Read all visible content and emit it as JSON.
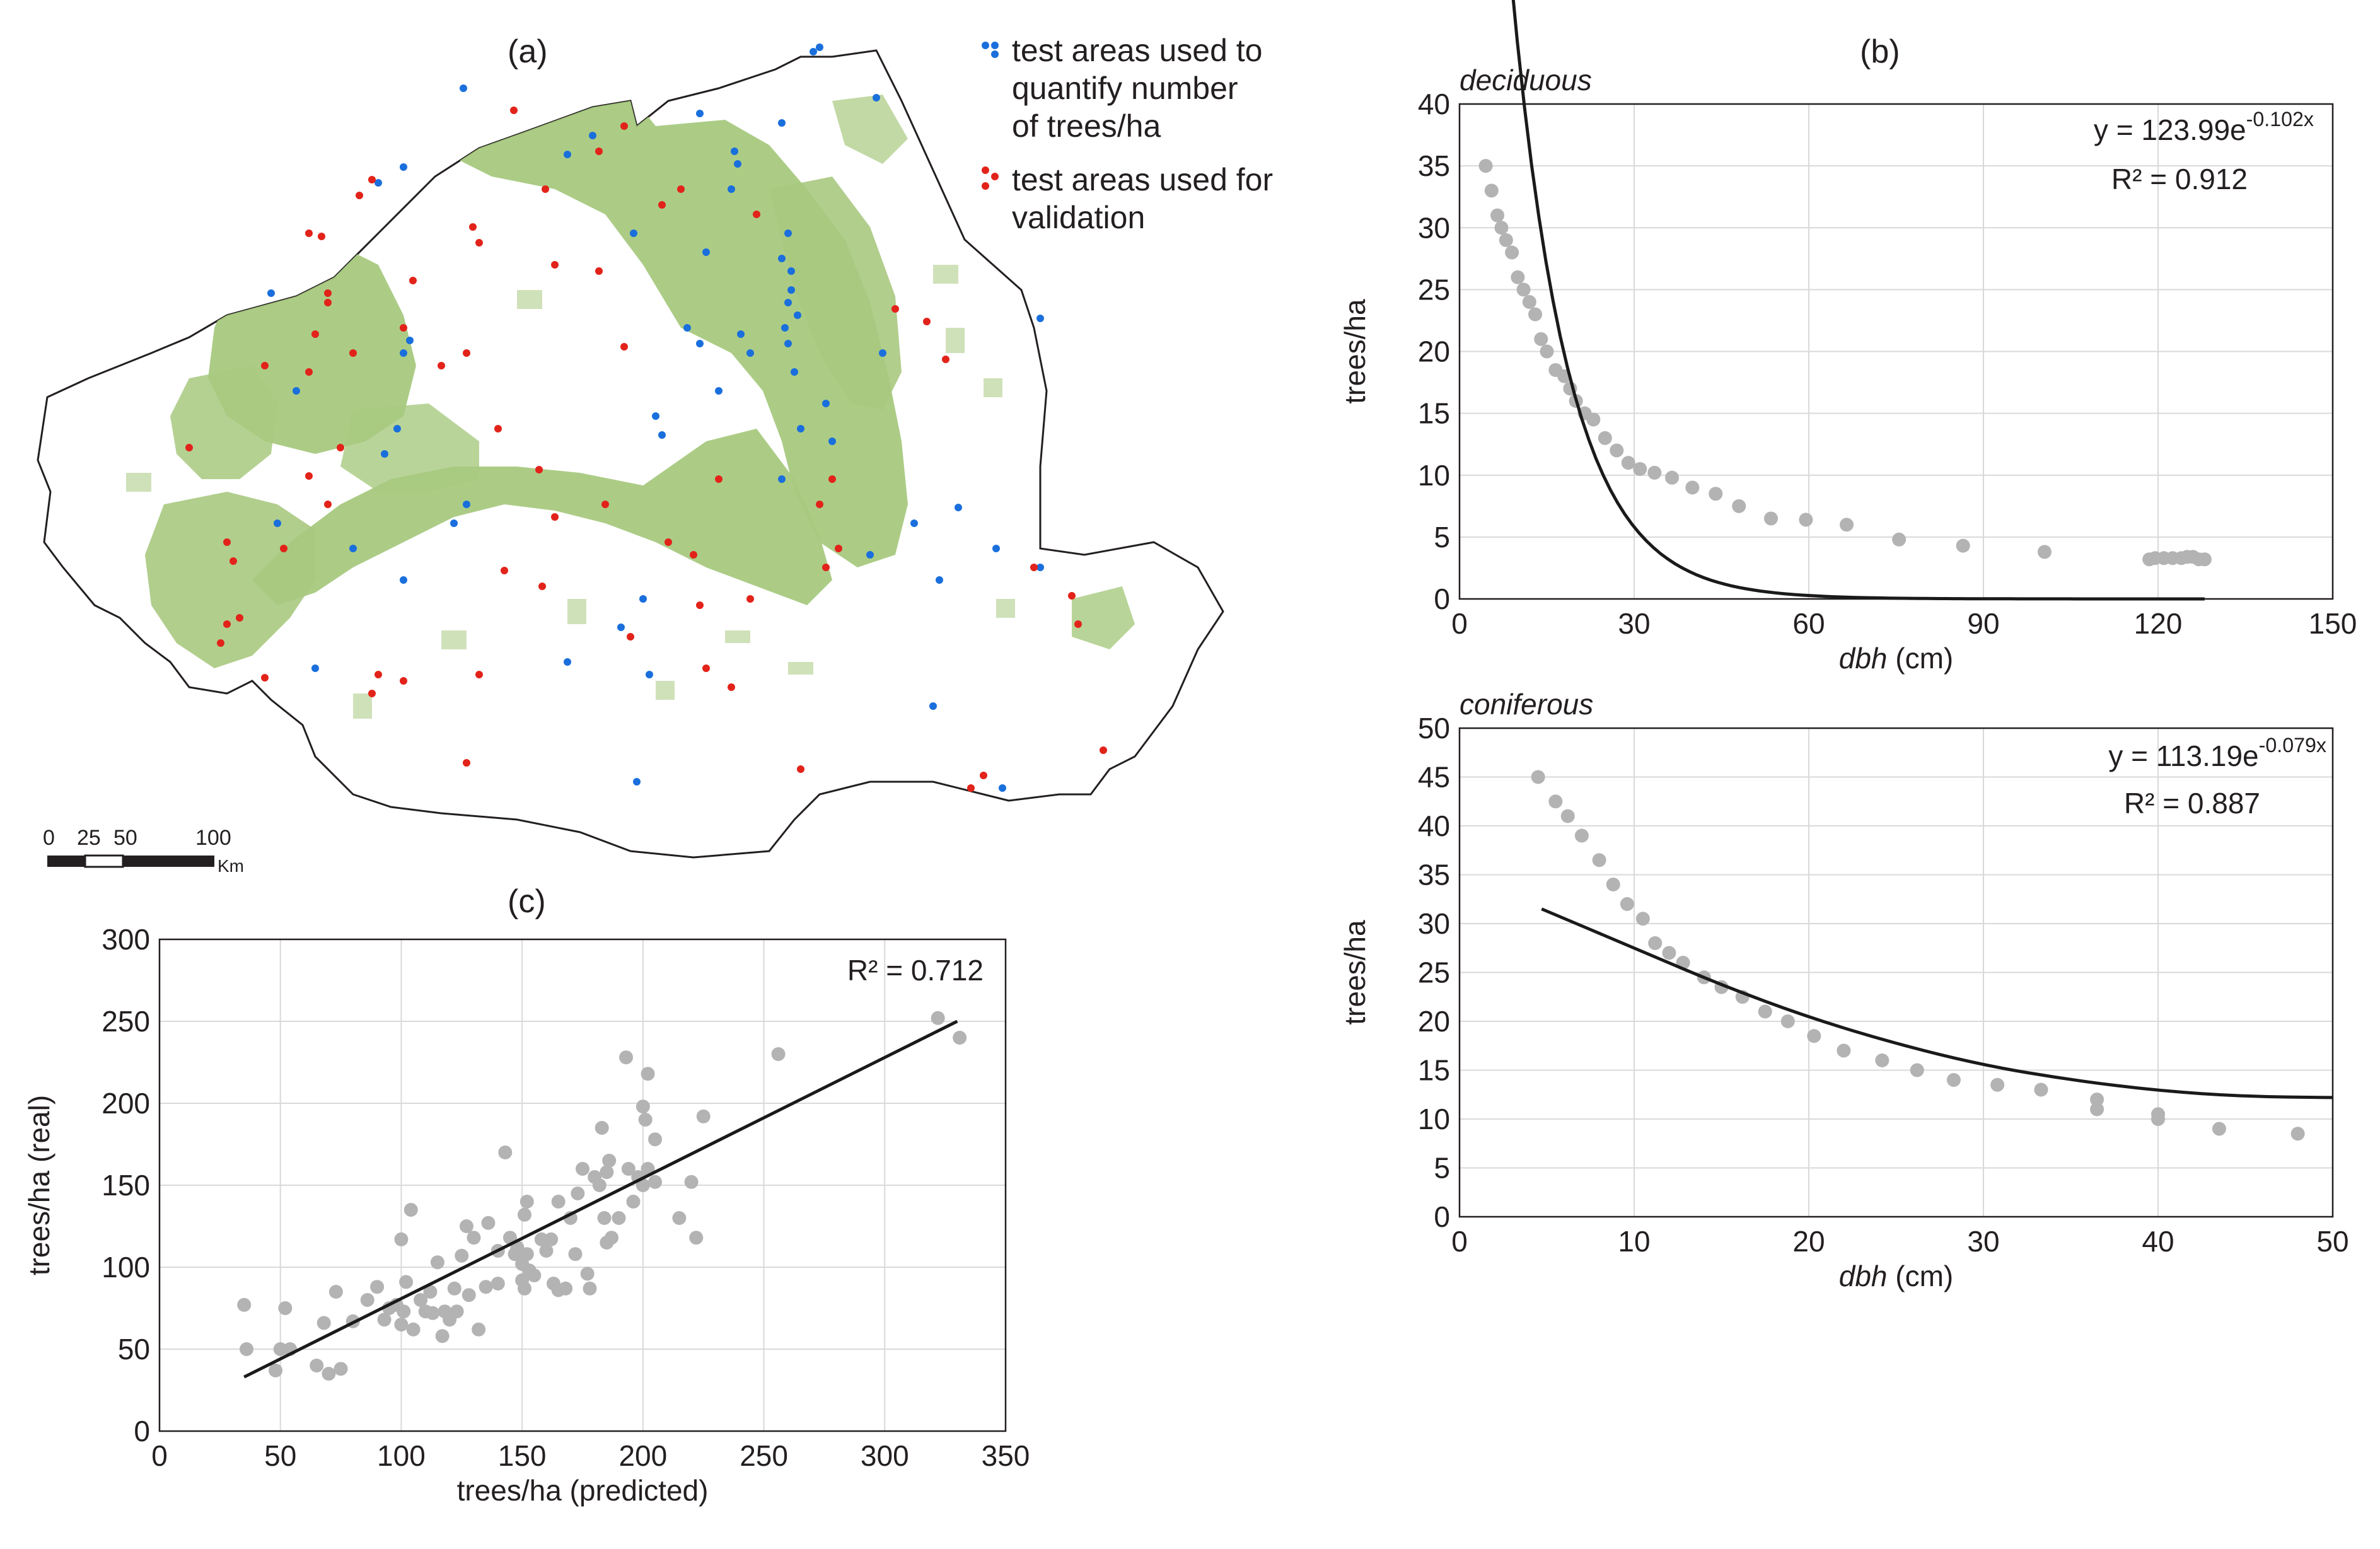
{
  "figure": {
    "panel_a_label": "(a)",
    "panel_b_label": "(b)",
    "panel_c_label": "(c)"
  },
  "map": {
    "legend": {
      "blue_label_lines": [
        "test areas used to",
        "quantify number",
        "of trees/ha"
      ],
      "red_label_lines": [
        "test areas used for",
        "validation"
      ]
    },
    "scale_bar": {
      "ticks": [
        "0",
        "25",
        "50",
        "100"
      ],
      "unit": "Km"
    },
    "colors": {
      "forest": "#a8c97f",
      "blue_points": "#1a6fdc",
      "red_points": "#e2231a",
      "border": "#231f20"
    }
  },
  "chart_data": [
    {
      "id": "deciduous",
      "type": "scatter",
      "title": "deciduous",
      "xlabel": "dbh (cm)",
      "ylabel": "trees/ha",
      "xlim": [
        0,
        150
      ],
      "ylim": [
        0,
        40
      ],
      "xticks": [
        0,
        30,
        60,
        90,
        120,
        150
      ],
      "yticks": [
        0,
        5,
        10,
        15,
        20,
        25,
        30,
        35,
        40
      ],
      "grid": true,
      "equation": "y = 123.99e",
      "equation_exp": "-0.102x",
      "r2_text": "R² = 0.912",
      "fit": {
        "a": 123.99,
        "b": -0.102,
        "x_range": [
          5,
          128
        ]
      },
      "points": [
        [
          4.5,
          35
        ],
        [
          5.5,
          33
        ],
        [
          6.5,
          31
        ],
        [
          7.2,
          30
        ],
        [
          8,
          29
        ],
        [
          9,
          28
        ],
        [
          10,
          26
        ],
        [
          11,
          25
        ],
        [
          12,
          24
        ],
        [
          13,
          23
        ],
        [
          14,
          21
        ],
        [
          15,
          20
        ],
        [
          16.5,
          18.5
        ],
        [
          18,
          18
        ],
        [
          19,
          17
        ],
        [
          20,
          16
        ],
        [
          21.5,
          15
        ],
        [
          23,
          14.5
        ],
        [
          25,
          13
        ],
        [
          27,
          12
        ],
        [
          29,
          11
        ],
        [
          31,
          10.5
        ],
        [
          33.5,
          10.2
        ],
        [
          36.5,
          9.8
        ],
        [
          40,
          9
        ],
        [
          44,
          8.5
        ],
        [
          48,
          7.5
        ],
        [
          53.5,
          6.5
        ],
        [
          59.5,
          6.4
        ],
        [
          66.5,
          6
        ],
        [
          75.5,
          4.8
        ],
        [
          86.5,
          4.3
        ],
        [
          100.5,
          3.8
        ],
        [
          118.5,
          3.2
        ],
        [
          119.5,
          3.3
        ],
        [
          121,
          3.3
        ],
        [
          122.5,
          3.3
        ],
        [
          124,
          3.3
        ],
        [
          125,
          3.4
        ],
        [
          126,
          3.4
        ],
        [
          127,
          3.2
        ],
        [
          128,
          3.2
        ]
      ]
    },
    {
      "id": "coniferous",
      "type": "scatter",
      "title": "coniferous",
      "xlabel": "dbh (cm)",
      "ylabel": "trees/ha",
      "xlim": [
        0,
        50
      ],
      "ylim": [
        0,
        50
      ],
      "xticks": [
        0,
        10,
        20,
        30,
        40,
        50
      ],
      "yticks": [
        0,
        5,
        10,
        15,
        20,
        25,
        30,
        35,
        40,
        45,
        50
      ],
      "grid": true,
      "equation": "y = 113.19e",
      "equation_exp": "-0.079x",
      "r2_text": "R² = 0.887",
      "fit_curve": [
        [
          4.7,
          31.5
        ],
        [
          10,
          27.5
        ],
        [
          15,
          23.7
        ],
        [
          20,
          20.4
        ],
        [
          25,
          17.7
        ],
        [
          30,
          15.5
        ],
        [
          35,
          14.0
        ],
        [
          40,
          12.9
        ],
        [
          45,
          12.3
        ],
        [
          50,
          12.2
        ]
      ],
      "points": [
        [
          4.5,
          45
        ],
        [
          5.5,
          42.5
        ],
        [
          6.2,
          41
        ],
        [
          7,
          39
        ],
        [
          8,
          36.5
        ],
        [
          8.8,
          34
        ],
        [
          9.6,
          32
        ],
        [
          10.5,
          30.5
        ],
        [
          11.2,
          28
        ],
        [
          12,
          27
        ],
        [
          12.8,
          26
        ],
        [
          14,
          24.5
        ],
        [
          15,
          23.5
        ],
        [
          16.2,
          22.5
        ],
        [
          17.5,
          21
        ],
        [
          18.8,
          20
        ],
        [
          20.3,
          18.5
        ],
        [
          22,
          17
        ],
        [
          24.2,
          16
        ],
        [
          26.2,
          15
        ],
        [
          28.3,
          14
        ],
        [
          30.8,
          13.5
        ],
        [
          33.3,
          13
        ],
        [
          36.5,
          12
        ],
        [
          36.5,
          11
        ],
        [
          40,
          10.5
        ],
        [
          40,
          10
        ],
        [
          43.5,
          9
        ],
        [
          48,
          8.5
        ]
      ]
    },
    {
      "id": "validation",
      "type": "scatter",
      "title": "",
      "xlabel": "trees/ha (predicted)",
      "ylabel": "trees/ha (real)",
      "xlim": [
        0,
        350
      ],
      "ylim": [
        0,
        300
      ],
      "xticks": [
        0,
        50,
        100,
        150,
        200,
        250,
        300,
        350
      ],
      "yticks": [
        0,
        50,
        100,
        150,
        200,
        250,
        300
      ],
      "grid": true,
      "r2_text": "R² = 0.712",
      "fit_line": [
        [
          35,
          33
        ],
        [
          330,
          250
        ]
      ],
      "points": [
        [
          35,
          77
        ],
        [
          36,
          50
        ],
        [
          48,
          37
        ],
        [
          50,
          50
        ],
        [
          52,
          75
        ],
        [
          54,
          50
        ],
        [
          65,
          40
        ],
        [
          68,
          66
        ],
        [
          70,
          35
        ],
        [
          73,
          85
        ],
        [
          75,
          38
        ],
        [
          80,
          67
        ],
        [
          86,
          80
        ],
        [
          90,
          88
        ],
        [
          93,
          68
        ],
        [
          95,
          75
        ],
        [
          98,
          77
        ],
        [
          100,
          117
        ],
        [
          100,
          65
        ],
        [
          101,
          73
        ],
        [
          102,
          91
        ],
        [
          104,
          135
        ],
        [
          105,
          62
        ],
        [
          108,
          80
        ],
        [
          110,
          73
        ],
        [
          112,
          85
        ],
        [
          113,
          72
        ],
        [
          115,
          103
        ],
        [
          117,
          58
        ],
        [
          118,
          73
        ],
        [
          120,
          68
        ],
        [
          122,
          87
        ],
        [
          123,
          73
        ],
        [
          125,
          107
        ],
        [
          127,
          125
        ],
        [
          128,
          83
        ],
        [
          130,
          118
        ],
        [
          132,
          62
        ],
        [
          135,
          88
        ],
        [
          136,
          127
        ],
        [
          140,
          110
        ],
        [
          140,
          90
        ],
        [
          143,
          170
        ],
        [
          145,
          118
        ],
        [
          147,
          108
        ],
        [
          148,
          112
        ],
        [
          150,
          102
        ],
        [
          150,
          92
        ],
        [
          151,
          132
        ],
        [
          151,
          87
        ],
        [
          152,
          140
        ],
        [
          152,
          108
        ],
        [
          153,
          98
        ],
        [
          155,
          95
        ],
        [
          158,
          117
        ],
        [
          160,
          110
        ],
        [
          162,
          117
        ],
        [
          163,
          90
        ],
        [
          165,
          86
        ],
        [
          165,
          140
        ],
        [
          168,
          87
        ],
        [
          170,
          130
        ],
        [
          172,
          108
        ],
        [
          173,
          145
        ],
        [
          175,
          160
        ],
        [
          177,
          96
        ],
        [
          178,
          87
        ],
        [
          180,
          155
        ],
        [
          182,
          150
        ],
        [
          183,
          185
        ],
        [
          184,
          130
        ],
        [
          185,
          115
        ],
        [
          185,
          158
        ],
        [
          186,
          165
        ],
        [
          187,
          118
        ],
        [
          190,
          130
        ],
        [
          193,
          228
        ],
        [
          194,
          160
        ],
        [
          196,
          140
        ],
        [
          198,
          155
        ],
        [
          200,
          150
        ],
        [
          200,
          198
        ],
        [
          201,
          190
        ],
        [
          202,
          160
        ],
        [
          202,
          218
        ],
        [
          205,
          178
        ],
        [
          205,
          152
        ],
        [
          215,
          130
        ],
        [
          220,
          152
        ],
        [
          222,
          118
        ],
        [
          225,
          192
        ],
        [
          256,
          230
        ],
        [
          322,
          252
        ],
        [
          331,
          240
        ]
      ]
    }
  ]
}
